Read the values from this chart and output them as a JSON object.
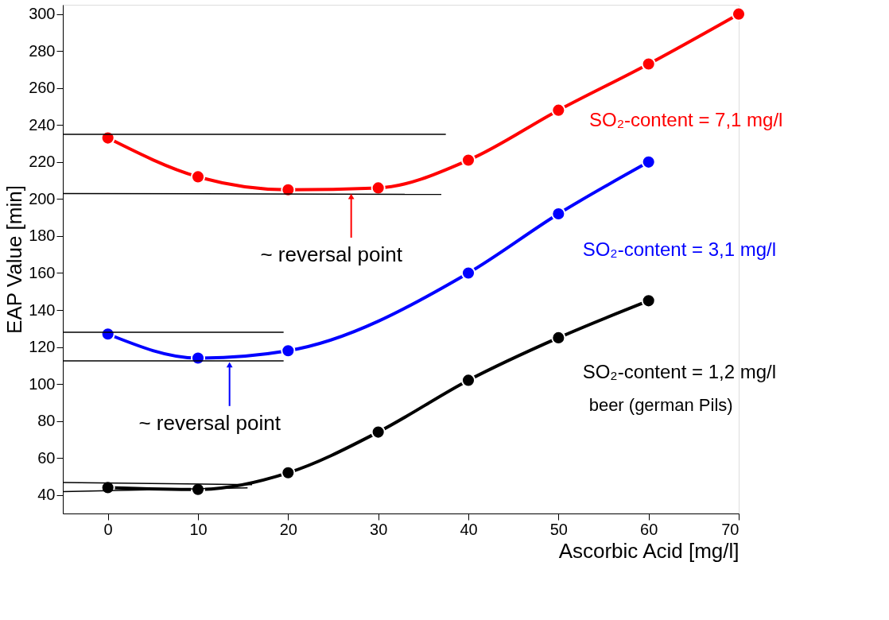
{
  "chart_data": {
    "type": "line",
    "xlabel": "Ascorbic Acid [mg/l]",
    "ylabel": "EAP Value [min]",
    "xlim": [
      -5,
      70
    ],
    "xticks": [
      0,
      10,
      20,
      30,
      40,
      50,
      60,
      70
    ],
    "ylim": [
      30,
      305
    ],
    "yticks": [
      40,
      60,
      80,
      100,
      120,
      140,
      160,
      180,
      200,
      220,
      240,
      260,
      280,
      300
    ],
    "grid": false,
    "marker": "circle",
    "series": [
      {
        "name": "SO₂-content = 7,1 mg/l",
        "color": "#ff0000",
        "x": [
          0,
          10,
          20,
          30,
          40,
          50,
          60,
          70
        ],
        "values": [
          233,
          212,
          205,
          206,
          221,
          248,
          273,
          300
        ]
      },
      {
        "name": "SO₂-content = 3,1 mg/l",
        "color": "#0000ff",
        "x": [
          0,
          10,
          20,
          40,
          50,
          60
        ],
        "values": [
          127,
          114,
          118,
          160,
          192,
          220
        ]
      },
      {
        "name": "SO₂-content = 1,2 mg/l",
        "color": "#000000",
        "x": [
          0,
          10,
          20,
          30,
          40,
          50,
          60
        ],
        "values": [
          44,
          43,
          52,
          74,
          102,
          125,
          145
        ]
      },
      {
        "type": "line",
        "marker": "none",
        "color": "#000000",
        "x": [
          -5,
          37.5
        ],
        "values": [
          235,
          235
        ]
      },
      {
        "type": "line",
        "marker": "none",
        "color": "#000000",
        "x": [
          -5,
          37
        ],
        "values": [
          203,
          202.5
        ]
      },
      {
        "type": "line",
        "marker": "none",
        "color": "#000000",
        "x": [
          -5,
          19.5
        ],
        "values": [
          128,
          128
        ]
      },
      {
        "type": "line",
        "marker": "none",
        "color": "#000000",
        "x": [
          -5,
          19.5
        ],
        "values": [
          112.5,
          112.5
        ]
      },
      {
        "type": "line",
        "marker": "none",
        "color": "#000000",
        "x": [
          -5,
          16
        ],
        "values": [
          46.8,
          45.6
        ]
      },
      {
        "type": "line",
        "marker": "none",
        "color": "#000000",
        "x": [
          -5,
          15.5
        ],
        "values": [
          41.8,
          43.9
        ]
      }
    ],
    "annotations": [
      {
        "text": "~ reversal point",
        "x": 27,
        "y": 204
      },
      {
        "text": "~ reversal point",
        "x": 13.5,
        "y": 113
      },
      "beer (german Pils)"
    ]
  }
}
